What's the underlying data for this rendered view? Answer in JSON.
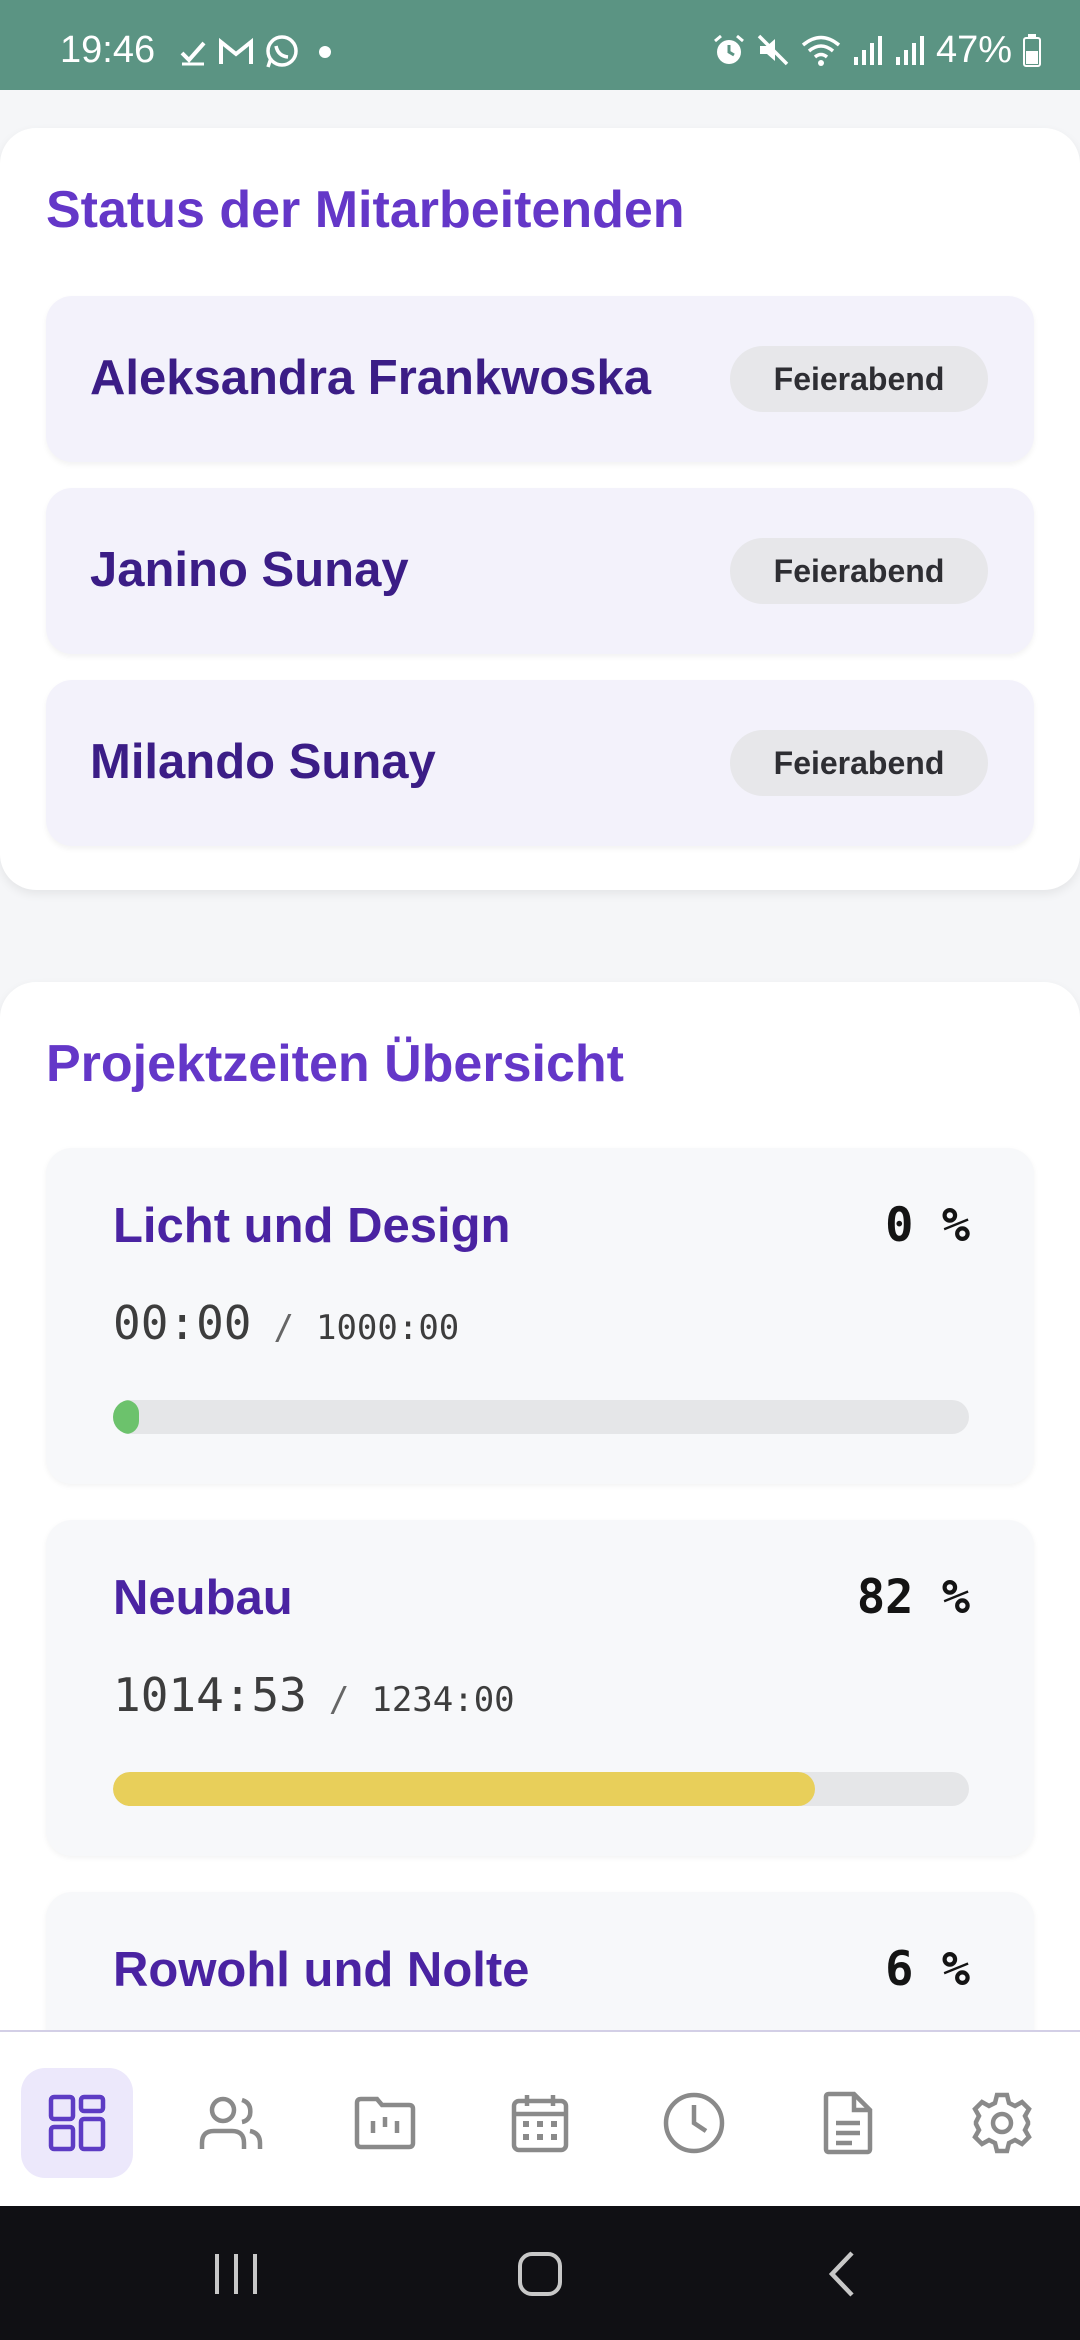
{
  "status_bar": {
    "time": "19:46",
    "battery": "47%",
    "left_icons": [
      "check-icon",
      "gmail-icon",
      "whatsapp-icon",
      "dot-icon"
    ],
    "right_icons": [
      "alarm-icon",
      "mute-icon",
      "wifi-icon",
      "signal-icon",
      "signal-icon",
      "battery-icon"
    ]
  },
  "employees": {
    "title": "Status der Mitarbeitenden",
    "items": [
      {
        "name": "Aleksandra Frankwoska",
        "status": "Feierabend"
      },
      {
        "name": "Janino Sunay",
        "status": "Feierabend"
      },
      {
        "name": "Milando Sunay",
        "status": "Feierabend"
      }
    ]
  },
  "projects": {
    "title": "Projektzeiten Übersicht",
    "separator": "/",
    "items": [
      {
        "name": "Licht und Design",
        "percent_label": "0 %",
        "used": "00:00",
        "total": "1000:00",
        "progress": 0.0,
        "bar_color": "#6cc26c"
      },
      {
        "name": "Neubau",
        "percent_label": "82 %",
        "used": "1014:53",
        "total": "1234:00",
        "progress": 0.82,
        "bar_color": "#e8cf5a"
      },
      {
        "name": "Rowohl und Nolte",
        "percent_label": "6 %"
      }
    ]
  },
  "bottom_nav": {
    "items": [
      {
        "icon": "dashboard-icon",
        "active": true
      },
      {
        "icon": "users-icon",
        "active": false
      },
      {
        "icon": "projects-folder-icon",
        "active": false
      },
      {
        "icon": "calendar-icon",
        "active": false
      },
      {
        "icon": "clock-icon",
        "active": false
      },
      {
        "icon": "document-icon",
        "active": false
      },
      {
        "icon": "settings-icon",
        "active": false
      }
    ]
  },
  "colors": {
    "status_bar": "#5b9483",
    "title": "#6437c8",
    "name": "#3b1d86",
    "nav_active_bg": "#ece8fb"
  }
}
